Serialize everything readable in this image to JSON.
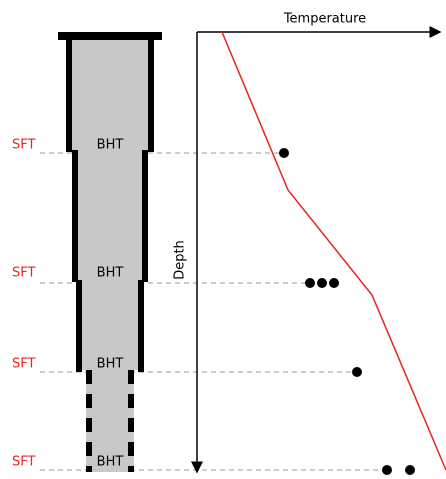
{
  "axes": {
    "x_label": "Temperature",
    "y_label": "Depth"
  },
  "levels": [
    {
      "sft": "SFT",
      "bht": "BHT"
    },
    {
      "sft": "SFT",
      "bht": "BHT"
    },
    {
      "sft": "SFT",
      "bht": "BHT"
    },
    {
      "sft": "SFT",
      "bht": "BHT"
    }
  ]
}
